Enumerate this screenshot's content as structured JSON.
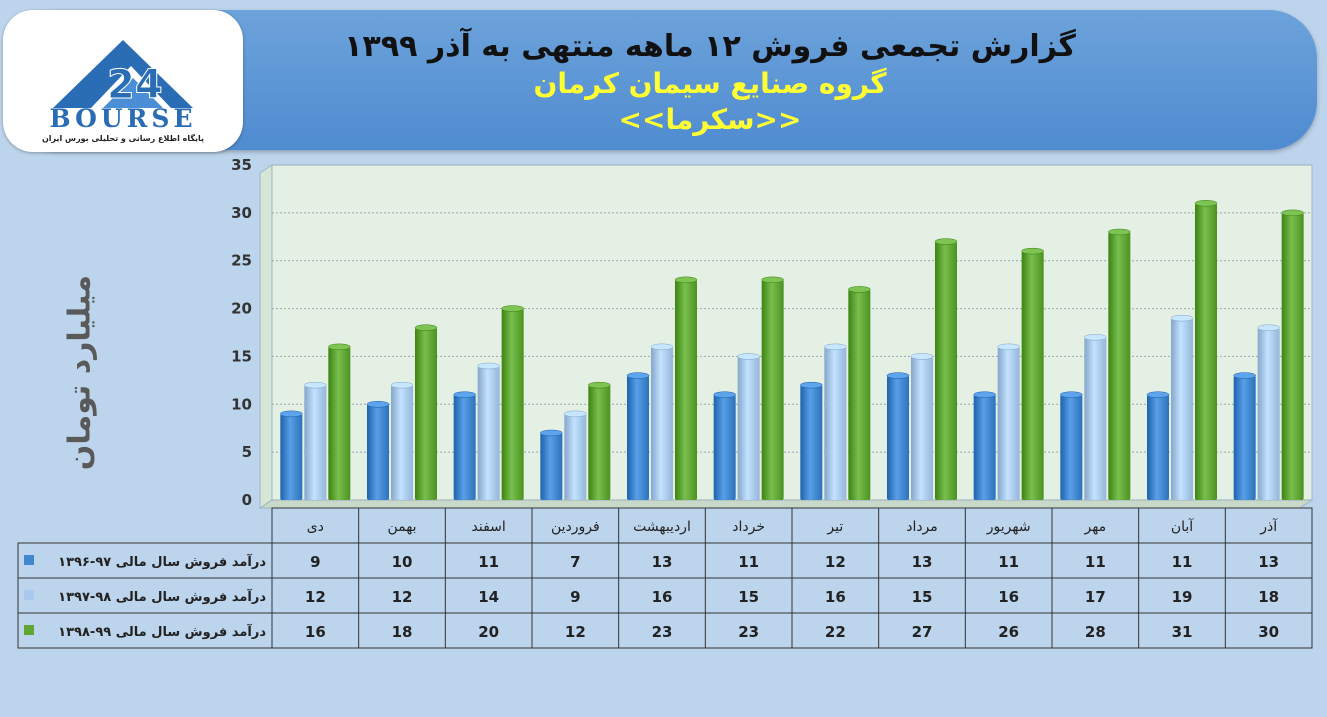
{
  "header": {
    "title_line1": "گزارش تجمعی فروش ۱۲ ماهه منتهی به آذر ۱۳۹۹",
    "title_line2": "گروه صنایع سیمان کرمان",
    "title_line3": "<<سکرما>>"
  },
  "logo": {
    "word": "BOURSE",
    "tagline": "پایگاه اطلاع رسانی و تحلیلی بورس ایران"
  },
  "colors": {
    "series1": "#3f86cf",
    "series2": "#a9c9ee",
    "series3": "#5fa635",
    "plot_background": "#e4f0e4"
  },
  "chart_data": {
    "type": "bar",
    "ylabel": "میلیارد تومان",
    "ylim": [
      0,
      35
    ],
    "yticks": [
      0,
      5,
      10,
      15,
      20,
      25,
      30,
      35
    ],
    "grid": true,
    "categories": [
      "دی",
      "بهمن",
      "اسفند",
      "فروردین",
      "اردیبهشت",
      "خرداد",
      "تیر",
      "مرداد",
      "شهریور",
      "مهر",
      "آبان",
      "آذر"
    ],
    "series": [
      {
        "name": "درآمد فروش سال مالی ۹۷-۱۳۹۶",
        "values": [
          9,
          10,
          11,
          7,
          13,
          11,
          12,
          13,
          11,
          11,
          11,
          13
        ]
      },
      {
        "name": "درآمد فروش سال مالی ۹۸-۱۳۹۷",
        "values": [
          12,
          12,
          14,
          9,
          16,
          15,
          16,
          15,
          16,
          17,
          19,
          18
        ]
      },
      {
        "name": "درآمد فروش سال مالی ۹۹-۱۳۹۸",
        "values": [
          16,
          18,
          20,
          12,
          23,
          23,
          22,
          27,
          26,
          28,
          31,
          30
        ]
      }
    ],
    "legend": "data-table"
  }
}
